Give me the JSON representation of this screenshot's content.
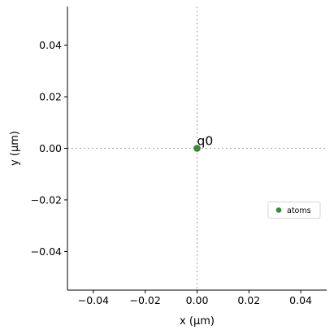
{
  "chart_data": {
    "type": "scatter",
    "xlabel": "x (µm)",
    "ylabel": "y (µm)",
    "xlim": [
      -0.05,
      0.05
    ],
    "ylim": [
      -0.055,
      0.055
    ],
    "x_ticks": [
      -0.04,
      -0.02,
      0.0,
      0.02,
      0.04
    ],
    "x_tick_labels": [
      "−0.04",
      "−0.02",
      "0.00",
      "0.02",
      "0.04"
    ],
    "y_ticks": [
      0.04,
      0.02,
      0.0,
      -0.02,
      -0.04
    ],
    "y_tick_labels": [
      "0.04",
      "0.02",
      "0.00",
      "−0.02",
      "−0.04"
    ],
    "grid": false,
    "reference_lines": {
      "x": 0,
      "y": 0,
      "style": "dotted"
    },
    "series": [
      {
        "name": "atoms",
        "color": "#3d8a3d",
        "points": [
          {
            "x": 0.0,
            "y": 0.0,
            "label": "q0"
          }
        ]
      }
    ],
    "legend": {
      "placement": "center-right",
      "entries": [
        "atoms"
      ]
    }
  }
}
